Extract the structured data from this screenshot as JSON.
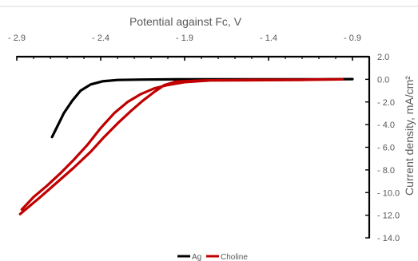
{
  "chart_data": {
    "type": "line",
    "xlabel": "Potential against Fc, V",
    "ylabel": "Current density, mA/cm²",
    "x_axis_position": "top",
    "y_axis_position": "right",
    "xlim": [
      -2.9,
      -0.8
    ],
    "ylim": [
      -14.0,
      2.0
    ],
    "x_ticks": [
      -2.9,
      -2.4,
      -1.9,
      -1.4,
      -0.9
    ],
    "x_tick_labels": [
      "- 2.9",
      "- 2.4",
      "- 1.9",
      "- 1.4",
      "- 0.9"
    ],
    "y_ticks": [
      2.0,
      0.0,
      -2.0,
      -4.0,
      -6.0,
      -8.0,
      -10.0,
      -12.0,
      -14.0
    ],
    "y_tick_labels": [
      "2.0",
      "0.0",
      "- 2.0",
      "- 4.0",
      "- 6.0",
      "- 8.0",
      "- 10.0",
      "- 12.0",
      "- 14.0"
    ],
    "grid": false,
    "legend_position": "bottom",
    "series": [
      {
        "name": "Ag",
        "color": "#000000",
        "x": [
          -2.69,
          -2.66,
          -2.62,
          -2.57,
          -2.52,
          -2.46,
          -2.39,
          -2.3,
          -2.15,
          -1.95,
          -1.7,
          -1.4,
          -1.1,
          -0.9
        ],
        "y": [
          -5.1,
          -4.2,
          -3.0,
          -1.9,
          -1.0,
          -0.45,
          -0.18,
          -0.06,
          -0.02,
          0.0,
          0.0,
          0.0,
          0.0,
          0.02
        ]
      },
      {
        "name": "Choline",
        "color": "#c00000",
        "x": [
          -2.87,
          -2.8,
          -2.72,
          -2.64,
          -2.56,
          -2.48,
          -2.4,
          -2.32,
          -2.24,
          -2.16,
          -2.08,
          -2.0,
          -1.9,
          -1.75,
          -1.5,
          -1.2,
          -0.96,
          -1.2,
          -1.5,
          -1.8,
          -1.95,
          -2.02,
          -2.08,
          -2.15,
          -2.22,
          -2.3,
          -2.38,
          -2.46,
          -2.56,
          -2.66,
          -2.76,
          -2.88
        ],
        "y": [
          -11.5,
          -10.4,
          -9.4,
          -8.3,
          -7.1,
          -5.8,
          -4.3,
          -3.0,
          -2.0,
          -1.3,
          -0.8,
          -0.5,
          -0.25,
          -0.1,
          -0.08,
          -0.05,
          0.0,
          -0.03,
          -0.05,
          -0.1,
          -0.2,
          -0.5,
          -1.1,
          -1.9,
          -2.8,
          -3.9,
          -5.1,
          -6.4,
          -7.8,
          -9.1,
          -10.4,
          -11.9
        ]
      }
    ]
  }
}
